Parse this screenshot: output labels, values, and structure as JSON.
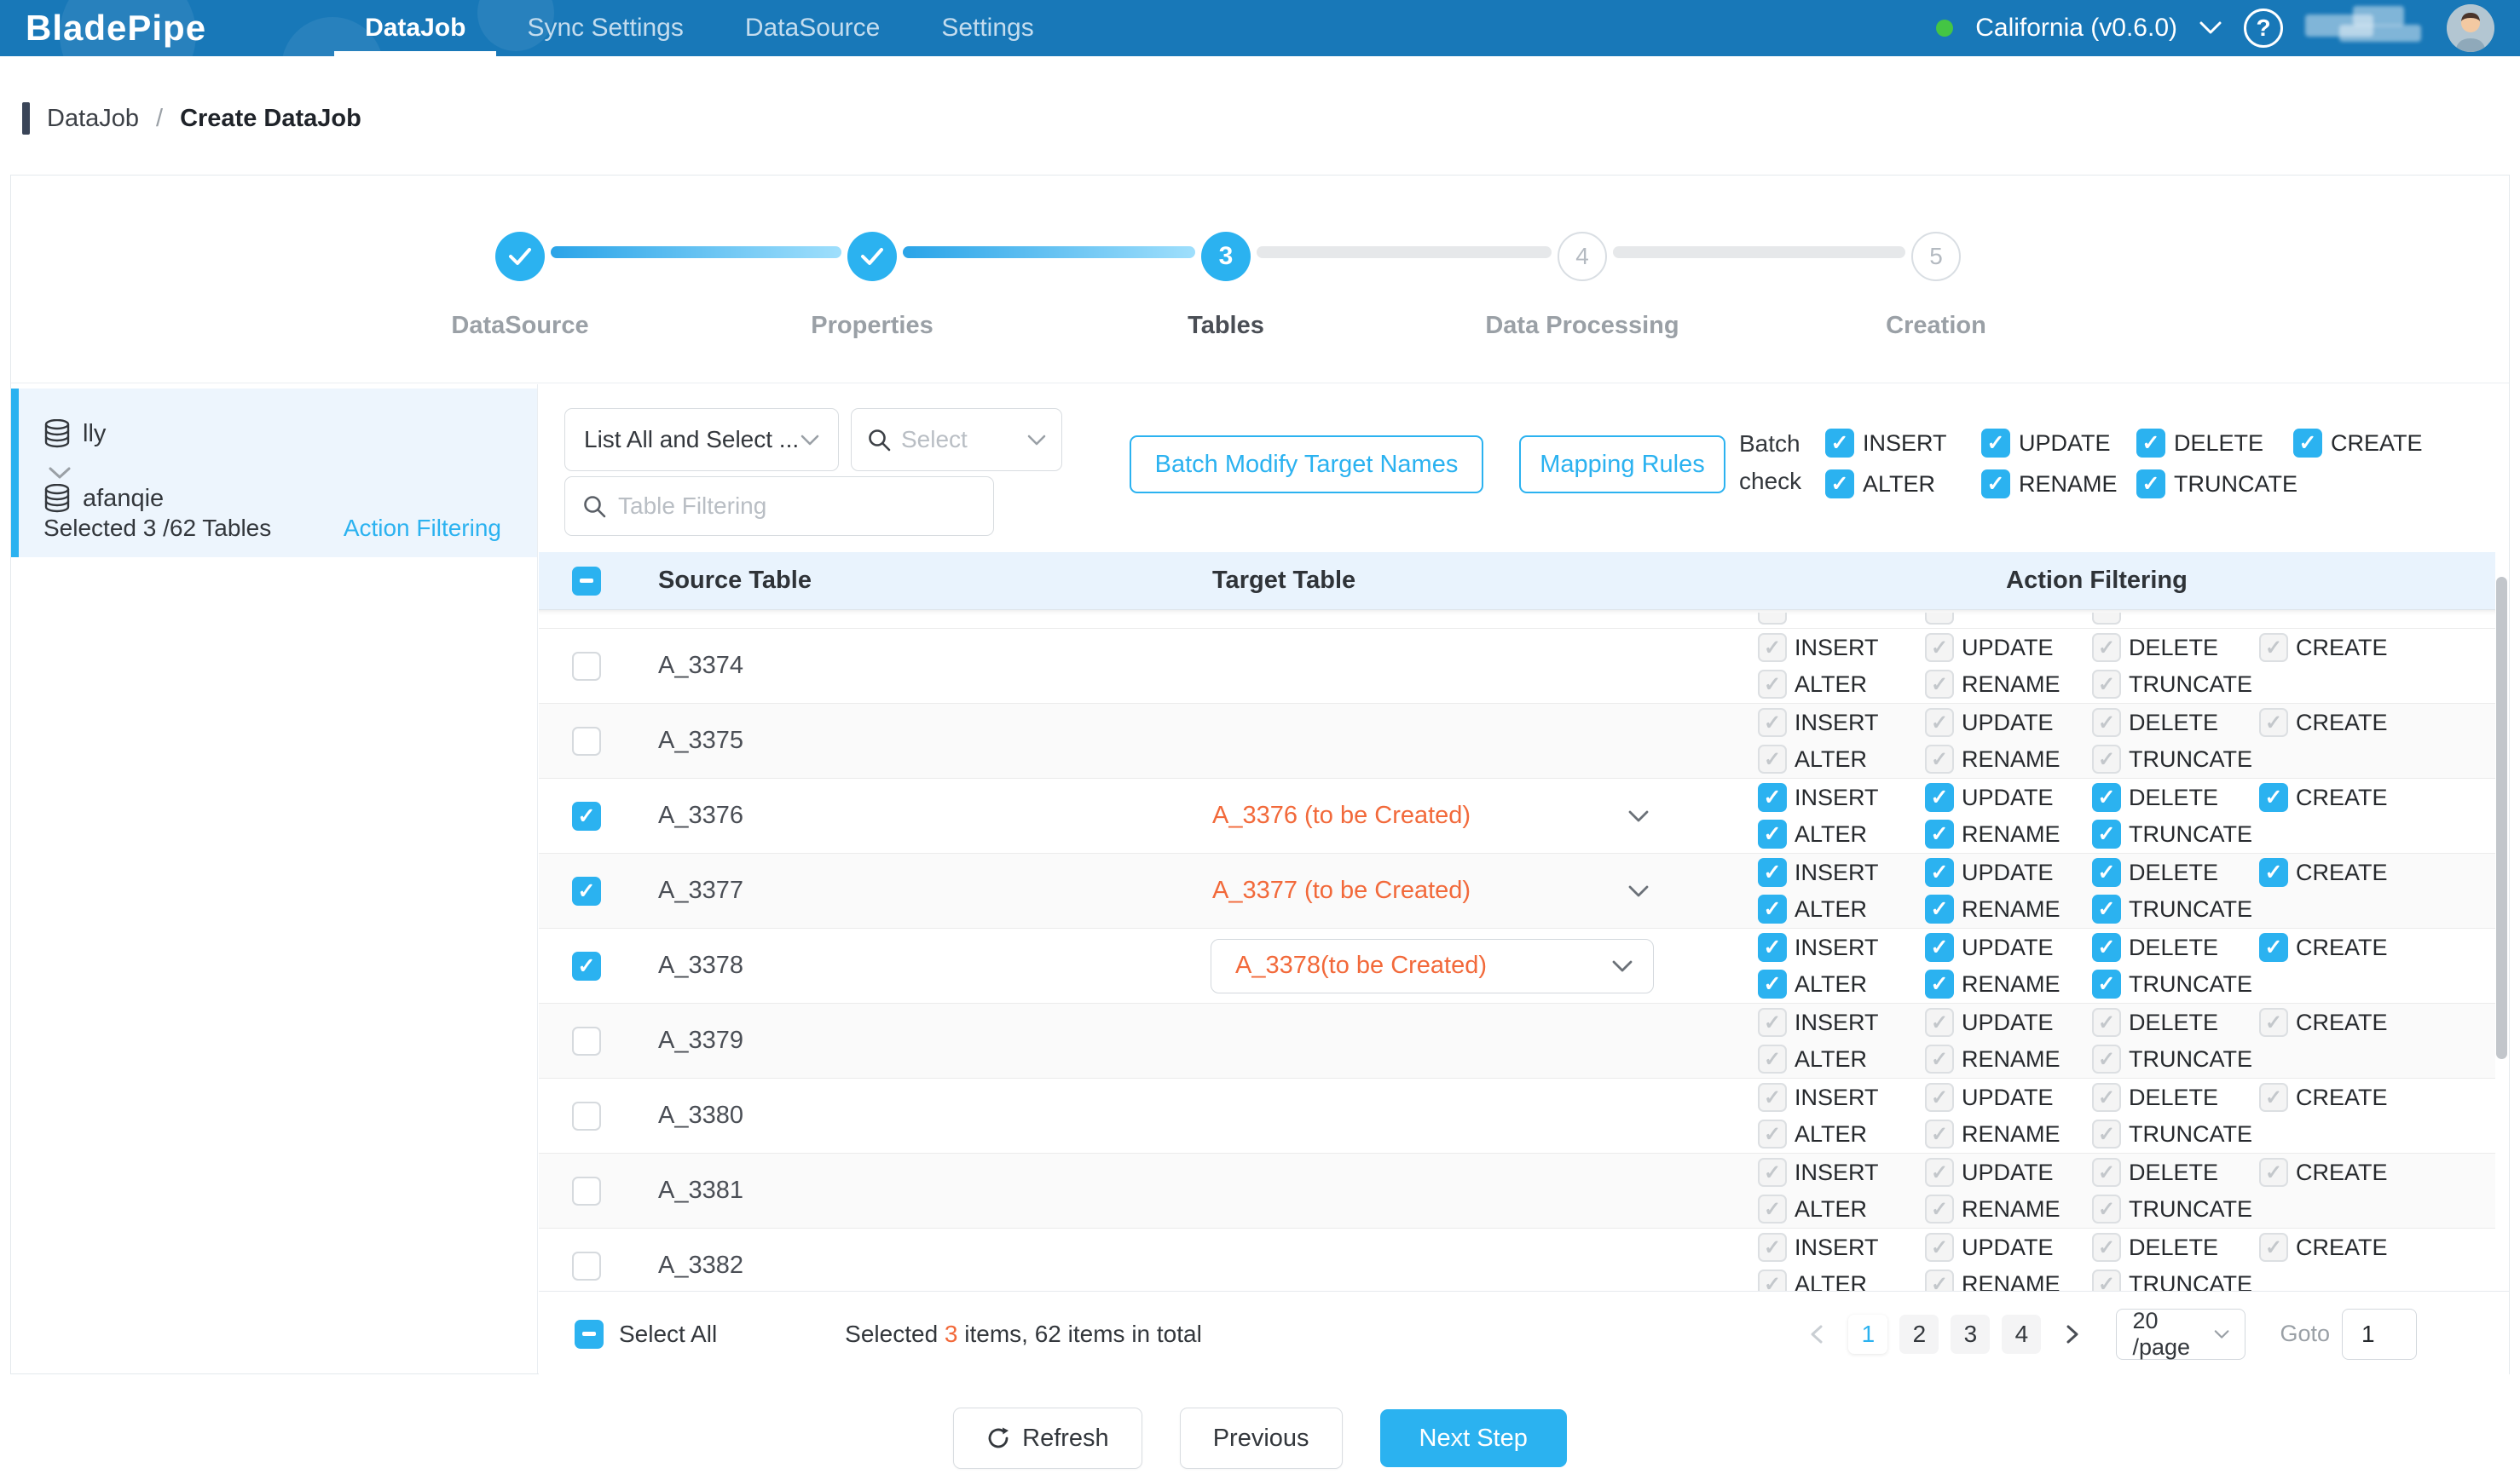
{
  "nav": {
    "logo": "BladePipe",
    "tabs": [
      {
        "label": "DataJob",
        "active": true
      },
      {
        "label": "Sync Settings",
        "active": false
      },
      {
        "label": "DataSource",
        "active": false
      },
      {
        "label": "Settings",
        "active": false
      }
    ],
    "region": "California (v0.6.0)",
    "help": "?"
  },
  "breadcrumb": {
    "parent": "DataJob",
    "separator": "/",
    "current": "Create DataJob"
  },
  "stepper": {
    "steps": [
      {
        "label": "DataSource",
        "state": "done",
        "number": "1"
      },
      {
        "label": "Properties",
        "state": "done",
        "number": "2"
      },
      {
        "label": "Tables",
        "state": "active",
        "number": "3"
      },
      {
        "label": "Data Processing",
        "state": "pending",
        "number": "4"
      },
      {
        "label": "Creation",
        "state": "pending",
        "number": "5"
      }
    ]
  },
  "sidebar": {
    "source_db": "lly",
    "target_db": "afanqie",
    "selection_summary": "Selected 3 /62 Tables",
    "action_filtering_link": "Action Filtering"
  },
  "toolbar": {
    "list_mode_value": "List All and Select ...",
    "select_placeholder": "Select",
    "filter_placeholder": "Table Filtering",
    "batch_modify_button": "Batch Modify Target Names",
    "mapping_rules_button": "Mapping Rules",
    "batch_check_line1": "Batch",
    "batch_check_line2": "check",
    "batch_actions_row1": [
      "INSERT",
      "UPDATE",
      "DELETE",
      "CREATE"
    ],
    "batch_actions_row2": [
      "ALTER",
      "RENAME",
      "TRUNCATE"
    ]
  },
  "table": {
    "columns": [
      "Source Table",
      "Target Table",
      "Action Filtering"
    ],
    "actions_row1": [
      "INSERT",
      "UPDATE",
      "DELETE",
      "CREATE"
    ],
    "actions_row2": [
      "ALTER",
      "RENAME",
      "TRUNCATE"
    ],
    "rows": [
      {
        "source": "A_3374",
        "target": "",
        "selected": false,
        "boxed": false
      },
      {
        "source": "A_3375",
        "target": "",
        "selected": false,
        "boxed": false
      },
      {
        "source": "A_3376",
        "target": "A_3376 (to be Created)",
        "selected": true,
        "boxed": false
      },
      {
        "source": "A_3377",
        "target": "A_3377 (to be Created)",
        "selected": true,
        "boxed": false
      },
      {
        "source": "A_3378",
        "target": "A_3378(to be Created)",
        "selected": true,
        "boxed": true
      },
      {
        "source": "A_3379",
        "target": "",
        "selected": false,
        "boxed": false
      },
      {
        "source": "A_3380",
        "target": "",
        "selected": false,
        "boxed": false
      },
      {
        "source": "A_3381",
        "target": "",
        "selected": false,
        "boxed": false
      },
      {
        "source": "A_3382",
        "target": "",
        "selected": false,
        "boxed": false
      }
    ]
  },
  "footer": {
    "select_all": "Select All",
    "summary_prefix": "Selected ",
    "selected_count": "3",
    "summary_suffix": " items, 62 items in total",
    "pages": [
      "1",
      "2",
      "3",
      "4"
    ],
    "active_page": "1",
    "page_size": "20 /page",
    "goto_label": "Goto",
    "goto_value": "1"
  },
  "actions": {
    "refresh": "Refresh",
    "previous": "Previous",
    "next": "Next Step"
  },
  "colors": {
    "primary": "#2bb2f0",
    "nav": "#1878b8",
    "orange": "#f2693a",
    "header_bg": "#e9f3fd"
  }
}
